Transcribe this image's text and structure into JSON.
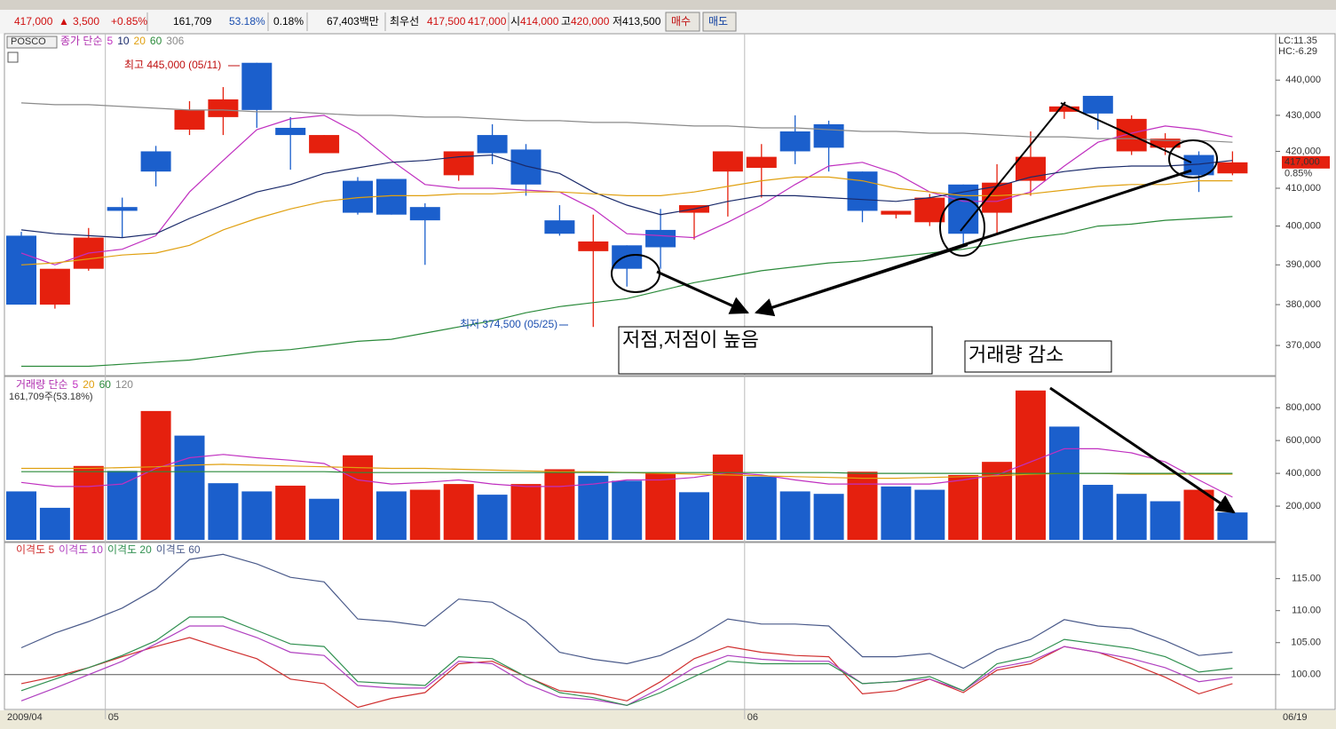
{
  "header": {
    "price": "417,000",
    "arrow": "▲",
    "change": "3,500",
    "pct": "+0.85%",
    "volume": "161,709",
    "vol_ratio": "53.18%",
    "turnover": "0.18%",
    "amount": "67,403백만",
    "best_label": "최우선",
    "ask": "417,500",
    "bid": "417,000",
    "open_label": "시",
    "open": "414,000",
    "high_label": "고",
    "high": "420,000",
    "low_label": "저",
    "low": "413,500",
    "buy": "매수",
    "sell": "매도"
  },
  "chart_data": [
    {
      "type": "candlestick",
      "title": "POSCO",
      "legend_prefix": "종가 단순",
      "categories": [
        "2009/04",
        null,
        null,
        "05",
        null,
        null,
        null,
        null,
        null,
        null,
        null,
        null,
        null,
        null,
        null,
        null,
        null,
        null,
        null,
        null,
        null,
        null,
        "06",
        null,
        null,
        null,
        null,
        null,
        null,
        null,
        null,
        null,
        null,
        null,
        null,
        null,
        "06/19"
      ],
      "open": [
        397500,
        380000,
        389000,
        405000,
        420000,
        426000,
        429500,
        445000,
        426500,
        419500,
        412000,
        412500,
        405000,
        413500,
        424500,
        420500,
        401500,
        393500,
        395000,
        399000,
        403500,
        414500,
        415500,
        425500,
        427500,
        414500,
        403000,
        401000,
        411000,
        403500,
        412000,
        431000,
        435500,
        420000,
        421000,
        419000,
        414000
      ],
      "high": [
        398500,
        389000,
        399500,
        407500,
        421500,
        434000,
        438000,
        445000,
        429500,
        424500,
        413000,
        412500,
        406000,
        420000,
        427500,
        422000,
        405500,
        403000,
        395000,
        404500,
        405500,
        420000,
        422000,
        430000,
        428500,
        414500,
        404000,
        408500,
        411000,
        416500,
        425500,
        433500,
        435500,
        430000,
        425000,
        420000,
        420000
      ],
      "low": [
        380000,
        379000,
        388500,
        397000,
        410500,
        424500,
        424500,
        426500,
        415000,
        419500,
        403000,
        403000,
        390000,
        412000,
        416500,
        408000,
        397500,
        374500,
        384500,
        389000,
        396500,
        402500,
        407500,
        416500,
        414500,
        401000,
        402000,
        400000,
        395000,
        398000,
        408000,
        429000,
        426000,
        419000,
        419000,
        409000,
        413500
      ],
      "close": [
        380000,
        389000,
        397000,
        404000,
        414500,
        431500,
        434500,
        431500,
        424500,
        424500,
        403500,
        403000,
        401500,
        420000,
        419500,
        411000,
        398000,
        396000,
        389000,
        394500,
        405500,
        420000,
        418500,
        420000,
        421000,
        404000,
        404000,
        407500,
        398000,
        411500,
        418500,
        432500,
        430500,
        429000,
        423500,
        413500,
        417000
      ],
      "up_color": "#e5200e",
      "down_color": "#1b5fcc",
      "series": [
        {
          "name": "5",
          "color": "#c030c0",
          "values": [
            393000,
            390000,
            393000,
            394000,
            397500,
            409000,
            417500,
            426000,
            429000,
            430000,
            425000,
            417500,
            411000,
            410000,
            410000,
            409500,
            409000,
            404500,
            398000,
            397500,
            397000,
            401000,
            405500,
            411000,
            416000,
            417000,
            414000,
            409000,
            406500,
            406500,
            409000,
            416000,
            422500,
            425000,
            427000,
            426000,
            424000
          ]
        },
        {
          "name": "10",
          "color": "#1a2a6a",
          "values": [
            399000,
            398000,
            397500,
            397000,
            398000,
            402000,
            405500,
            409000,
            411000,
            414000,
            415500,
            417000,
            417500,
            418500,
            419000,
            416000,
            414000,
            409000,
            405500,
            403000,
            404500,
            406500,
            408000,
            408000,
            407500,
            407000,
            406500,
            407500,
            409000,
            410500,
            413000,
            414500,
            415500,
            416000,
            416000,
            416500,
            417500
          ]
        },
        {
          "name": "20",
          "color": "#e0a010",
          "values": [
            390000,
            390500,
            391500,
            392500,
            393000,
            395000,
            399000,
            402000,
            404500,
            406500,
            407500,
            408000,
            408000,
            408500,
            408500,
            409000,
            409000,
            408500,
            408000,
            408000,
            409000,
            410500,
            412000,
            413000,
            413000,
            412000,
            410000,
            409000,
            408000,
            408000,
            408500,
            409500,
            410500,
            411000,
            411000,
            412000,
            412000
          ]
        },
        {
          "name": "60",
          "color": "#2a8a3a",
          "values": [
            365000,
            365000,
            365000,
            365500,
            366000,
            366500,
            367500,
            368500,
            369000,
            370000,
            371000,
            371500,
            373000,
            374500,
            376000,
            378000,
            379500,
            380500,
            381500,
            383500,
            385500,
            387000,
            388500,
            389500,
            390500,
            391000,
            392000,
            393000,
            394000,
            395500,
            397000,
            398000,
            400000,
            400500,
            401500,
            402000,
            402500
          ]
        },
        {
          "name": "306",
          "color": "#8a8a8a",
          "values": [
            433500,
            433000,
            433000,
            432500,
            432000,
            431500,
            431500,
            431000,
            431000,
            430500,
            430000,
            430000,
            429500,
            429500,
            429000,
            428500,
            428500,
            428000,
            428000,
            427500,
            427000,
            427000,
            426500,
            426500,
            426000,
            425500,
            425500,
            425000,
            425000,
            424500,
            424000,
            424000,
            423500,
            423500,
            423000,
            423000,
            422500
          ]
        }
      ],
      "log_scale": true,
      "ylim": [
        363000,
        453000
      ],
      "yticks": [
        {
          "value": 370000,
          "label": "370,000"
        },
        {
          "value": 380000,
          "label": "380,000"
        },
        {
          "value": 390000,
          "label": "390,000"
        },
        {
          "value": 400000,
          "label": "400,000"
        },
        {
          "value": 410000,
          "label": "410,000"
        },
        {
          "value": 420000,
          "label": "420,000"
        },
        {
          "value": 430000,
          "label": "430,000"
        },
        {
          "value": 440000,
          "label": "440,000"
        }
      ],
      "corner_labels": [
        "LC:11.35",
        "HC:-6.29"
      ],
      "last_price": {
        "value": 417000,
        "label": "417,000"
      },
      "last_change": "0.85%",
      "annotations": [
        "최고 445,000 (05/11)",
        "최저 374,500 (05/25)",
        "저점,저점이 높음",
        "거래량 감소"
      ]
    },
    {
      "type": "bar",
      "legend_prefix": "거래량 단순",
      "subtitle": "161,709주(53.18%)",
      "values": [
        290000,
        190000,
        445000,
        415000,
        780000,
        630000,
        340000,
        290000,
        325000,
        245000,
        510000,
        290000,
        300000,
        335000,
        270000,
        335000,
        425000,
        385000,
        355000,
        400000,
        285000,
        515000,
        380000,
        290000,
        275000,
        410000,
        320000,
        300000,
        390000,
        470000,
        905000,
        685000,
        330000,
        275000,
        230000,
        300000,
        161709
      ],
      "colors": [
        "#1b5fcc",
        "#1b5fcc",
        "#e5200e",
        "#1b5fcc",
        "#e5200e",
        "#1b5fcc",
        "#1b5fcc",
        "#1b5fcc",
        "#e5200e",
        "#1b5fcc",
        "#e5200e",
        "#1b5fcc",
        "#e5200e",
        "#e5200e",
        "#1b5fcc",
        "#e5200e",
        "#e5200e",
        "#1b5fcc",
        "#1b5fcc",
        "#e5200e",
        "#1b5fcc",
        "#e5200e",
        "#1b5fcc",
        "#1b5fcc",
        "#1b5fcc",
        "#e5200e",
        "#1b5fcc",
        "#1b5fcc",
        "#e5200e",
        "#e5200e",
        "#e5200e",
        "#1b5fcc",
        "#1b5fcc",
        "#1b5fcc",
        "#1b5fcc",
        "#e5200e",
        "#1b5fcc"
      ],
      "series": [
        {
          "name": "5",
          "color": "#c030c0",
          "values": [
            345000,
            320000,
            320000,
            335000,
            430000,
            495000,
            515000,
            495000,
            480000,
            460000,
            360000,
            335000,
            345000,
            360000,
            335000,
            320000,
            320000,
            335000,
            360000,
            360000,
            375000,
            405000,
            390000,
            360000,
            335000,
            335000,
            335000,
            335000,
            360000,
            390000,
            470000,
            550000,
            550000,
            525000,
            470000,
            360000,
            255000
          ]
        },
        {
          "name": "20",
          "color": "#e0a010",
          "values": [
            430000,
            430000,
            430000,
            435000,
            440000,
            450000,
            455000,
            450000,
            445000,
            440000,
            435000,
            430000,
            430000,
            425000,
            420000,
            415000,
            410000,
            410000,
            405000,
            400000,
            395000,
            390000,
            385000,
            380000,
            375000,
            370000,
            370000,
            375000,
            380000,
            385000,
            395000,
            400000,
            400000,
            395000,
            395000,
            395000,
            395000
          ]
        },
        {
          "name": "60",
          "color": "#2a8a3a",
          "values": [
            410000,
            410000,
            410000,
            410000,
            410000,
            410000,
            410000,
            410000,
            410000,
            410000,
            405000,
            405000,
            405000,
            405000,
            405000,
            405000,
            405000,
            405000,
            405000,
            405000,
            405000,
            405000,
            405000,
            405000,
            405000,
            400000,
            400000,
            400000,
            400000,
            400000,
            400000,
            400000,
            400000,
            400000,
            400000,
            400000,
            400000
          ]
        }
      ],
      "extra_legend": [
        "120"
      ],
      "ylim": [
        0,
        985000
      ],
      "yticks": [
        {
          "value": 200000,
          "label": "200,000"
        },
        {
          "value": 400000,
          "label": "400,000"
        },
        {
          "value": 600000,
          "label": "600,000"
        },
        {
          "value": 800000,
          "label": "800,000"
        }
      ]
    },
    {
      "type": "line",
      "series": [
        {
          "name": "이격도 5",
          "color": "#d03030",
          "values": [
            98.6,
            99.7,
            101.1,
            102.8,
            104.4,
            105.8,
            104.1,
            102.5,
            99.3,
            98.6,
            94.9,
            96.3,
            97.2,
            101.7,
            102.1,
            99.7,
            97.5,
            97.0,
            95.9,
            98.9,
            102.5,
            104.4,
            103.5,
            103.0,
            102.8,
            97.0,
            97.5,
            99.3,
            97.2,
            100.7,
            101.7,
            104.4,
            103.5,
            101.7,
            99.6,
            97.0,
            98.6
          ]
        },
        {
          "name": "이격도 10",
          "color": "#b040c0",
          "values": [
            95.9,
            97.9,
            100,
            102.1,
            104.8,
            107.6,
            107.6,
            105.8,
            103.5,
            103.0,
            98.3,
            97.9,
            97.9,
            102.1,
            101.7,
            98.6,
            96.5,
            96.1,
            95.2,
            97.9,
            101.1,
            103.0,
            102.4,
            102.1,
            102.1,
            98.6,
            98.9,
            99.3,
            97.5,
            101.1,
            102.1,
            104.4,
            103.5,
            102.5,
            101.1,
            98.9,
            99.6
          ]
        },
        {
          "name": "이격도 20",
          "color": "#309050",
          "values": [
            97.5,
            99.3,
            101.1,
            103.0,
            105.3,
            109.0,
            109.0,
            106.9,
            104.8,
            104.4,
            98.9,
            98.6,
            98.3,
            102.8,
            102.5,
            99.7,
            97.2,
            96.4,
            95.2,
            97.2,
            99.7,
            102.1,
            101.7,
            101.7,
            101.7,
            98.6,
            98.9,
            99.7,
            97.5,
            101.7,
            102.8,
            105.5,
            104.8,
            104.1,
            102.8,
            100.4,
            101.0
          ]
        },
        {
          "name": "이격도 60",
          "color": "#4a5a8a",
          "values": [
            104.2,
            106.5,
            108.3,
            110.4,
            113.4,
            118.0,
            118.8,
            117.3,
            115.2,
            114.5,
            108.7,
            108.3,
            107.6,
            111.8,
            111.3,
            108.3,
            103.5,
            102.4,
            101.7,
            103.0,
            105.5,
            108.7,
            107.9,
            107.9,
            107.6,
            102.8,
            102.8,
            103.3,
            101.0,
            103.9,
            105.5,
            108.6,
            107.6,
            107.2,
            105.3,
            103.0,
            103.5
          ]
        }
      ],
      "reference_line": 100,
      "ylim": [
        94.7,
        120.5
      ],
      "yticks": [
        {
          "value": 100,
          "label": "100.00"
        },
        {
          "value": 105,
          "label": "105.00"
        },
        {
          "value": 110,
          "label": "110.00"
        },
        {
          "value": 115,
          "label": "115.00"
        }
      ]
    }
  ]
}
